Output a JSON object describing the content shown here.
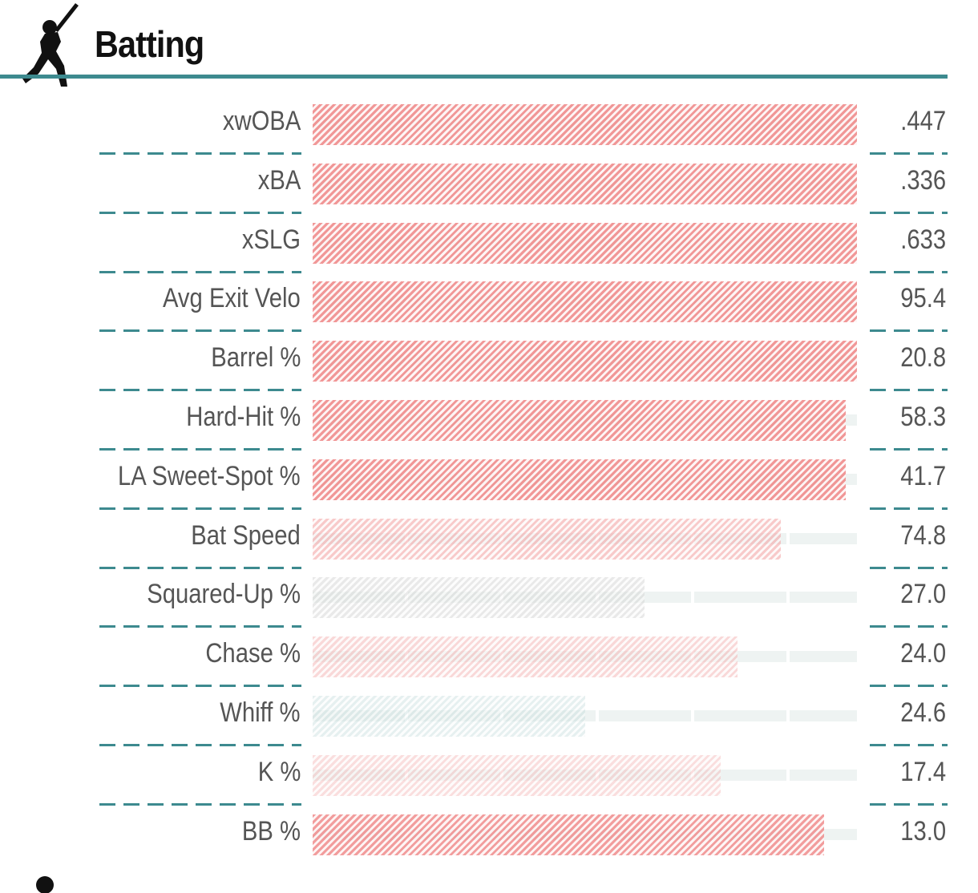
{
  "header": {
    "title": "Batting",
    "icon": "batter-silhouette-icon"
  },
  "footer": {
    "icon": "player-silhouette-icon"
  },
  "colors": {
    "accent": "#3d8a8f",
    "bar_red": "#f08c8c",
    "bar_gray": "#d8d8d8",
    "track": "#eef3f2"
  },
  "chart_data": {
    "type": "bar",
    "orientation": "horizontal",
    "title": "Batting",
    "value_scale": "percentile",
    "xlim": [
      0,
      100
    ],
    "rows": [
      {
        "label": "xwOBA",
        "value": ".447",
        "percentile": 100,
        "color": "#f08c8c",
        "intensity": 0.9
      },
      {
        "label": "xBA",
        "value": ".336",
        "percentile": 100,
        "color": "#f08c8c",
        "intensity": 0.9
      },
      {
        "label": "xSLG",
        "value": ".633",
        "percentile": 100,
        "color": "#f08c8c",
        "intensity": 0.9
      },
      {
        "label": "Avg Exit Velo",
        "value": "95.4",
        "percentile": 100,
        "color": "#f08c8c",
        "intensity": 0.9
      },
      {
        "label": "Barrel %",
        "value": "20.8",
        "percentile": 100,
        "color": "#f08c8c",
        "intensity": 0.9
      },
      {
        "label": "Hard-Hit %",
        "value": "58.3",
        "percentile": 98,
        "color": "#f08c8c",
        "intensity": 0.9
      },
      {
        "label": "LA Sweet-Spot %",
        "value": "41.7",
        "percentile": 98,
        "color": "#f08c8c",
        "intensity": 0.9
      },
      {
        "label": "Bat Speed",
        "value": "74.8",
        "percentile": 86,
        "color": "#f4a8a8",
        "intensity": 0.6
      },
      {
        "label": "Squared-Up %",
        "value": "27.0",
        "percentile": 61,
        "color": "#d8d8d8",
        "intensity": 0.55
      },
      {
        "label": "Chase %",
        "value": "24.0",
        "percentile": 78,
        "color": "#f4b2b2",
        "intensity": 0.5
      },
      {
        "label": "Whiff %",
        "value": "24.6",
        "percentile": 50,
        "color": "#c8dede",
        "intensity": 0.45
      },
      {
        "label": "K %",
        "value": "17.4",
        "percentile": 75,
        "color": "#f4b8b8",
        "intensity": 0.45
      },
      {
        "label": "BB %",
        "value": "13.0",
        "percentile": 94,
        "color": "#f08c8c",
        "intensity": 0.85
      }
    ]
  }
}
